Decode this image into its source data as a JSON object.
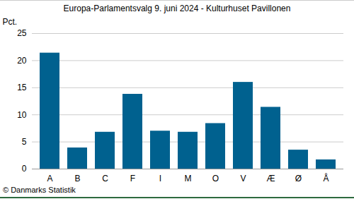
{
  "chart_data": {
    "type": "bar",
    "title": "Europa-Parlamentsvalg 9. juni 2024 - Kulturhuset Pavillonen",
    "y_label": "Pct.",
    "caption": "© Danmarks Statistik",
    "categories": [
      "A",
      "B",
      "C",
      "F",
      "I",
      "M",
      "O",
      "V",
      "Æ",
      "Ø",
      "Å"
    ],
    "values": [
      21.4,
      3.9,
      6.8,
      13.8,
      7.0,
      6.8,
      8.4,
      16.0,
      11.4,
      3.5,
      1.7
    ],
    "color": "#00618f",
    "ylim": [
      0,
      25
    ],
    "yticks": [
      0,
      5,
      10,
      15,
      20,
      25
    ],
    "grid": true
  }
}
